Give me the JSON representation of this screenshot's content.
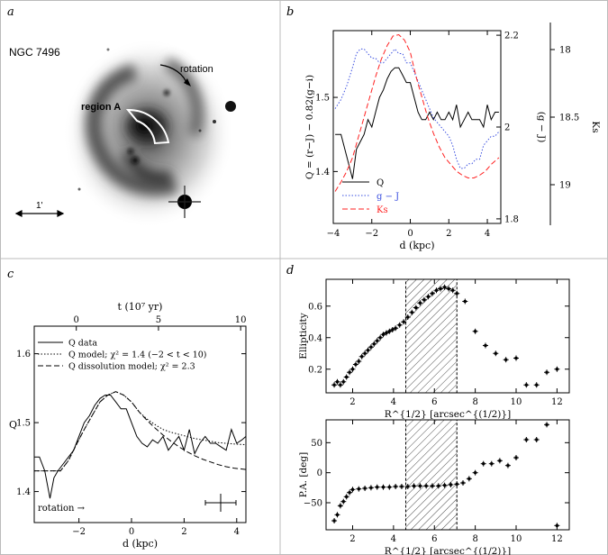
{
  "panels": {
    "a": {
      "letter": "a",
      "galaxy_label": "NGC 7496",
      "rotation_label": "rotation",
      "region_label": "region A",
      "scale_label": "1'"
    },
    "b": {
      "letter": "b",
      "legend": [
        "Q",
        "g − J",
        "Ks"
      ],
      "colors": {
        "q": "#000000",
        "gj": "#3a4fe0",
        "ks": "#ff2020"
      }
    },
    "c": {
      "letter": "c",
      "legend": [
        "Q data",
        "Q model; χ² = 1.4  (−2 < t < 10)",
        "Q dissolution model; χ² = 2.3"
      ],
      "rotation_label": "rotation →"
    },
    "d": {
      "letter": "d"
    }
  },
  "chart_data": [
    {
      "id": "b",
      "type": "line",
      "title": "",
      "xlabel": "d (kpc)",
      "ylabel": "Q = (r−J) − 0.82(g−i)",
      "y2label": "(g − J)",
      "y3label": "Ks",
      "xlim": [
        -4,
        4.7
      ],
      "ylim": [
        1.33,
        1.59
      ],
      "y2lim": [
        1.79,
        2.21
      ],
      "y3lim": [
        19.3,
        17.8
      ],
      "xticks": [
        -4,
        -2,
        0,
        2,
        4
      ],
      "yticks": [
        1.4,
        1.5
      ],
      "y2ticks": [
        1.8,
        2,
        2.2
      ],
      "y3ticks": [
        18,
        18.5,
        19
      ],
      "series": [
        {
          "name": "Q",
          "axis": "left",
          "style": "solid",
          "x": [
            -3.9,
            -3.6,
            -3.3,
            -3.0,
            -2.8,
            -2.6,
            -2.4,
            -2.2,
            -2.0,
            -1.8,
            -1.6,
            -1.4,
            -1.2,
            -1.0,
            -0.8,
            -0.6,
            -0.4,
            -0.2,
            0.0,
            0.2,
            0.4,
            0.6,
            0.8,
            1.0,
            1.2,
            1.4,
            1.6,
            1.8,
            2.0,
            2.2,
            2.4,
            2.6,
            2.8,
            3.0,
            3.2,
            3.4,
            3.6,
            3.8,
            4.0,
            4.2,
            4.4,
            4.6
          ],
          "y": [
            1.45,
            1.45,
            1.42,
            1.39,
            1.43,
            1.44,
            1.45,
            1.47,
            1.46,
            1.48,
            1.5,
            1.51,
            1.525,
            1.535,
            1.54,
            1.54,
            1.53,
            1.52,
            1.52,
            1.5,
            1.48,
            1.47,
            1.47,
            1.48,
            1.47,
            1.48,
            1.47,
            1.47,
            1.48,
            1.47,
            1.49,
            1.46,
            1.47,
            1.48,
            1.47,
            1.47,
            1.47,
            1.46,
            1.49,
            1.47,
            1.48,
            1.48
          ]
        },
        {
          "name": "g − J",
          "axis": "y2",
          "style": "dotted",
          "x": [
            -3.9,
            -3.6,
            -3.3,
            -3.0,
            -2.8,
            -2.6,
            -2.4,
            -2.2,
            -2.0,
            -1.8,
            -1.6,
            -1.4,
            -1.2,
            -1.0,
            -0.8,
            -0.6,
            -0.4,
            -0.2,
            0.0,
            0.2,
            0.4,
            0.6,
            0.8,
            1.0,
            1.2,
            1.4,
            1.6,
            1.8,
            2.0,
            2.2,
            2.4,
            2.6,
            2.8,
            3.0,
            3.2,
            3.4,
            3.6,
            3.8,
            4.0,
            4.2,
            4.4,
            4.6
          ],
          "y": [
            2.04,
            2.06,
            2.09,
            2.13,
            2.16,
            2.17,
            2.17,
            2.16,
            2.15,
            2.15,
            2.14,
            2.14,
            2.15,
            2.16,
            2.17,
            2.16,
            2.16,
            2.14,
            2.14,
            2.12,
            2.1,
            2.08,
            2.06,
            2.04,
            2.02,
            2.01,
            2.0,
            1.99,
            1.98,
            1.96,
            1.93,
            1.91,
            1.91,
            1.92,
            1.92,
            1.93,
            1.93,
            1.96,
            1.97,
            1.98,
            1.98,
            1.99
          ]
        },
        {
          "name": "Ks",
          "axis": "y3",
          "style": "dashed",
          "x": [
            -3.9,
            -3.6,
            -3.3,
            -3.0,
            -2.7,
            -2.4,
            -2.1,
            -1.8,
            -1.5,
            -1.2,
            -0.9,
            -0.6,
            -0.3,
            0.0,
            0.3,
            0.6,
            0.9,
            1.2,
            1.5,
            1.8,
            2.1,
            2.4,
            2.7,
            3.0,
            3.3,
            3.6,
            3.9,
            4.2,
            4.6
          ],
          "y": [
            19.05,
            18.98,
            18.9,
            18.8,
            18.65,
            18.5,
            18.35,
            18.2,
            18.07,
            17.97,
            17.9,
            17.89,
            17.93,
            18.02,
            18.2,
            18.35,
            18.5,
            18.62,
            18.72,
            18.8,
            18.85,
            18.9,
            18.93,
            18.95,
            18.95,
            18.93,
            18.9,
            18.85,
            18.8
          ]
        }
      ]
    },
    {
      "id": "c",
      "type": "line",
      "xlabel": "d (kpc)",
      "x2label": "t (10⁷ yr)",
      "ylabel": "Q",
      "xlim": [
        -3.7,
        4.35
      ],
      "ylim": [
        1.355,
        1.64
      ],
      "xticks": [
        -2,
        0,
        2,
        4
      ],
      "x2ticks": [
        0,
        5,
        10
      ],
      "yticks": [
        1.4,
        1.5,
        1.6
      ],
      "series": [
        {
          "name": "Q data",
          "style": "solid",
          "x": [
            -3.7,
            -3.5,
            -3.3,
            -3.1,
            -2.95,
            -2.8,
            -2.6,
            -2.4,
            -2.2,
            -2.0,
            -1.8,
            -1.6,
            -1.4,
            -1.2,
            -1.0,
            -0.8,
            -0.6,
            -0.4,
            -0.2,
            0.0,
            0.2,
            0.4,
            0.6,
            0.8,
            1.0,
            1.2,
            1.4,
            1.6,
            1.8,
            2.0,
            2.2,
            2.4,
            2.6,
            2.8,
            3.0,
            3.2,
            3.4,
            3.6,
            3.8,
            4.0,
            4.2,
            4.35
          ],
          "y": [
            1.45,
            1.45,
            1.43,
            1.39,
            1.42,
            1.43,
            1.44,
            1.45,
            1.46,
            1.48,
            1.5,
            1.51,
            1.525,
            1.535,
            1.54,
            1.54,
            1.53,
            1.52,
            1.52,
            1.5,
            1.48,
            1.47,
            1.465,
            1.475,
            1.47,
            1.48,
            1.46,
            1.47,
            1.48,
            1.46,
            1.49,
            1.455,
            1.47,
            1.48,
            1.47,
            1.47,
            1.465,
            1.46,
            1.49,
            1.47,
            1.475,
            1.48
          ]
        },
        {
          "name": "Q model",
          "style": "dotted",
          "x": [
            -3.7,
            -2.7,
            -2.4,
            -2.1,
            -1.8,
            -1.5,
            -1.2,
            -0.9,
            -0.6,
            -0.3,
            0.0,
            0.3,
            0.6,
            0.9,
            1.2,
            1.5,
            1.8,
            2.1,
            2.4,
            2.7,
            3.0,
            3.3,
            3.6,
            3.9,
            4.35
          ],
          "y": [
            1.43,
            1.43,
            1.445,
            1.468,
            1.49,
            1.51,
            1.53,
            1.54,
            1.545,
            1.54,
            1.53,
            1.515,
            1.505,
            1.497,
            1.49,
            1.486,
            1.483,
            1.48,
            1.477,
            1.475,
            1.473,
            1.471,
            1.47,
            1.469,
            1.468
          ]
        },
        {
          "name": "Q dissolution model",
          "style": "dashed",
          "x": [
            -3.7,
            -2.7,
            -2.4,
            -2.1,
            -1.8,
            -1.5,
            -1.2,
            -0.9,
            -0.6,
            -0.3,
            0.0,
            0.3,
            0.6,
            0.9,
            1.2,
            1.5,
            1.8,
            2.1,
            2.4,
            2.7,
            3.0,
            3.3,
            3.6,
            3.9,
            4.35
          ],
          "y": [
            1.43,
            1.43,
            1.445,
            1.468,
            1.49,
            1.51,
            1.53,
            1.54,
            1.545,
            1.54,
            1.53,
            1.515,
            1.503,
            1.492,
            1.482,
            1.473,
            1.465,
            1.458,
            1.452,
            1.447,
            1.443,
            1.439,
            1.436,
            1.434,
            1.432
          ]
        }
      ]
    },
    {
      "id": "d_top",
      "type": "scatter",
      "xlabel": "R^{1/2} [arcsec^{(1/2)}]",
      "ylabel": "Ellipticity",
      "xlim": [
        0.7,
        12.6
      ],
      "ylim": [
        0.05,
        0.77
      ],
      "xticks": [
        2,
        4,
        6,
        8,
        10,
        12
      ],
      "yticks": [
        0.2,
        0.4,
        0.6
      ],
      "shaded_x": [
        4.6,
        7.1
      ],
      "x": [
        1.1,
        1.25,
        1.4,
        1.55,
        1.7,
        1.85,
        2.0,
        2.15,
        2.3,
        2.45,
        2.6,
        2.75,
        2.9,
        3.05,
        3.2,
        3.35,
        3.5,
        3.65,
        3.8,
        3.95,
        4.1,
        4.3,
        4.5,
        4.7,
        4.9,
        5.1,
        5.3,
        5.5,
        5.7,
        5.9,
        6.1,
        6.3,
        6.5,
        6.7,
        6.9,
        7.1,
        7.5,
        8.0,
        8.5,
        9.0,
        9.5,
        10.0,
        10.5,
        11.0,
        11.5,
        12.0
      ],
      "y": [
        0.1,
        0.12,
        0.1,
        0.12,
        0.15,
        0.18,
        0.2,
        0.23,
        0.25,
        0.28,
        0.3,
        0.32,
        0.34,
        0.36,
        0.38,
        0.4,
        0.42,
        0.43,
        0.44,
        0.45,
        0.46,
        0.48,
        0.5,
        0.53,
        0.56,
        0.59,
        0.62,
        0.64,
        0.66,
        0.68,
        0.7,
        0.71,
        0.72,
        0.71,
        0.7,
        0.68,
        0.63,
        0.44,
        0.35,
        0.3,
        0.26,
        0.27,
        0.1,
        0.1,
        0.18,
        0.2
      ]
    },
    {
      "id": "d_bottom",
      "type": "scatter",
      "xlabel": "R^{1/2} [arcsec^{(1/2)}]",
      "ylabel": "P.A. [deg]",
      "xlim": [
        0.7,
        12.6
      ],
      "ylim": [
        -95,
        88
      ],
      "xticks": [
        2,
        4,
        6,
        8,
        10,
        12
      ],
      "yticks": [
        -50,
        0,
        50
      ],
      "shaded_x": [
        4.6,
        7.1
      ],
      "x": [
        1.1,
        1.25,
        1.4,
        1.55,
        1.7,
        1.85,
        2.0,
        2.3,
        2.6,
        2.9,
        3.2,
        3.5,
        3.8,
        4.1,
        4.4,
        4.7,
        5.0,
        5.3,
        5.6,
        5.9,
        6.2,
        6.5,
        6.8,
        7.1,
        7.4,
        7.7,
        8.0,
        8.4,
        8.8,
        9.2,
        9.6,
        10.0,
        10.5,
        11.0,
        11.5,
        12.0
      ],
      "y": [
        -80,
        -70,
        -55,
        -48,
        -40,
        -33,
        -28,
        -27,
        -26,
        -25,
        -24,
        -24,
        -24,
        -23,
        -23,
        -23,
        -22,
        -22,
        -22,
        -22,
        -22,
        -21,
        -20,
        -19,
        -17,
        -10,
        0,
        15,
        15,
        20,
        12,
        25,
        55,
        55,
        80,
        -88
      ]
    }
  ]
}
